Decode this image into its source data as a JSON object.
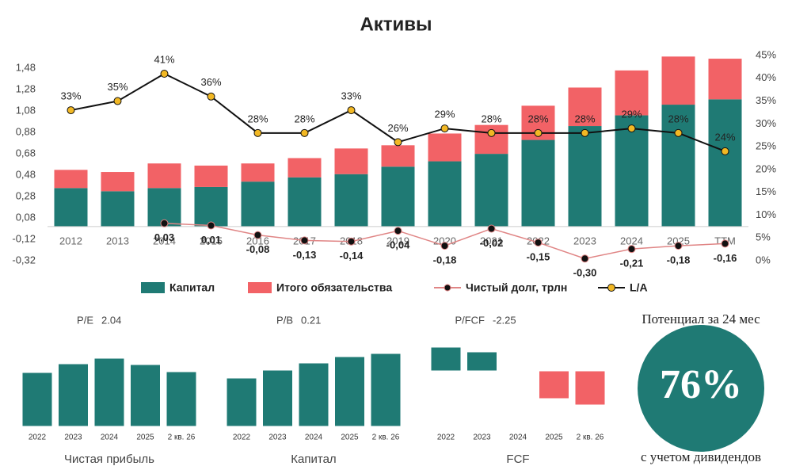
{
  "chart_data": [
    {
      "type": "bar",
      "title": "Активы",
      "stacked": true,
      "categories": [
        "2012",
        "2013",
        "2014",
        "2015",
        "2016",
        "2017",
        "2018",
        "2019",
        "2020",
        "2021",
        "2022",
        "2023",
        "2024",
        "2025",
        "TTM"
      ],
      "series": [
        {
          "name": "Капитал",
          "type": "bar",
          "color": "#1f7a74",
          "values": [
            0.36,
            0.33,
            0.36,
            0.37,
            0.42,
            0.46,
            0.49,
            0.56,
            0.61,
            0.68,
            0.81,
            0.94,
            1.04,
            1.14,
            1.19
          ]
        },
        {
          "name": "Итого обязательства",
          "type": "bar",
          "color": "#f26266",
          "values": [
            0.17,
            0.18,
            0.23,
            0.2,
            0.17,
            0.18,
            0.24,
            0.2,
            0.26,
            0.27,
            0.32,
            0.36,
            0.42,
            0.45,
            0.38
          ]
        },
        {
          "name": "Чистый долг, трлн",
          "type": "line",
          "color": "#e08585",
          "marker_color": "#111",
          "values": [
            null,
            null,
            0.03,
            0.01,
            -0.08,
            -0.13,
            -0.14,
            -0.04,
            -0.18,
            -0.02,
            -0.15,
            -0.3,
            -0.21,
            -0.18,
            -0.16
          ],
          "value_labels": [
            null,
            null,
            "0,03",
            "0,01",
            "-0,08",
            "-0,13",
            "-0,14",
            "-0,04",
            "-0,18",
            "-0,02",
            "-0,15",
            "-0,30",
            "-0,21",
            "-0,18",
            "-0,16"
          ]
        },
        {
          "name": "L/A",
          "type": "line",
          "axis": "y2",
          "color": "#111",
          "marker_color": "#f2b824",
          "values": [
            33,
            35,
            41,
            36,
            28,
            28,
            33,
            26,
            29,
            28,
            28,
            28,
            29,
            28,
            24
          ],
          "value_labels": [
            "33%",
            "35%",
            "41%",
            "36%",
            "28%",
            "28%",
            "33%",
            "26%",
            "29%",
            "28%",
            "28%",
            "28%",
            "29%",
            "28%",
            "24%"
          ]
        }
      ],
      "ylim": [
        -0.32,
        1.6
      ],
      "yticks": [
        {
          "value": -0.32,
          "label": "-0,32"
        },
        {
          "value": -0.12,
          "label": "-0,12"
        },
        {
          "value": 0.08,
          "label": "0,08"
        },
        {
          "value": 0.28,
          "label": "0,28"
        },
        {
          "value": 0.48,
          "label": "0,48"
        },
        {
          "value": 0.68,
          "label": "0,68"
        },
        {
          "value": 0.88,
          "label": "0,88"
        },
        {
          "value": 1.08,
          "label": "1,08"
        },
        {
          "value": 1.28,
          "label": "1,28"
        },
        {
          "value": 1.48,
          "label": "1,48"
        }
      ],
      "y2lim": [
        0,
        45
      ],
      "y2ticks": [
        {
          "value": 0,
          "label": "0%"
        },
        {
          "value": 5,
          "label": "5%"
        },
        {
          "value": 10,
          "label": "10%"
        },
        {
          "value": 15,
          "label": "15%"
        },
        {
          "value": 20,
          "label": "20%"
        },
        {
          "value": 25,
          "label": "25%"
        },
        {
          "value": 30,
          "label": "30%"
        },
        {
          "value": 35,
          "label": "35%"
        },
        {
          "value": 40,
          "label": "40%"
        },
        {
          "value": 45,
          "label": "45%"
        }
      ],
      "legend": "bottom"
    },
    {
      "type": "bar",
      "title": "Чистая прибыль",
      "metric": "P/E",
      "metric_value": 2.04,
      "color": "#1f7a74",
      "categories": [
        "2022",
        "2023",
        "2024",
        "2025",
        "2 кв. 26"
      ],
      "values": [
        68,
        79,
        86,
        78,
        69
      ],
      "ylim": [
        0,
        100
      ]
    },
    {
      "type": "bar",
      "title": "Капитал",
      "metric": "P/B",
      "metric_value": 0.21,
      "color": "#1f7a74",
      "categories": [
        "2022",
        "2023",
        "2024",
        "2025",
        "2 кв. 26"
      ],
      "values": [
        61,
        71,
        80,
        88,
        92
      ],
      "ylim": [
        0,
        100
      ]
    },
    {
      "type": "bar",
      "title": "FCF",
      "metric": "P/FCF",
      "metric_value": -2.25,
      "metric_color": "#d9534f",
      "color": "#1f7a74",
      "negative_color": "#f26266",
      "categories": [
        "2022",
        "2023",
        "2024",
        "2025",
        "2 кв. 26"
      ],
      "values": [
        30,
        24,
        0,
        -35,
        -43
      ],
      "ylim": [
        -70,
        40
      ]
    }
  ],
  "potential": {
    "heading": "Потенциал за 24 мес",
    "value": "76%",
    "note": "с учетом дивидендов",
    "color": "#1f7a74"
  }
}
